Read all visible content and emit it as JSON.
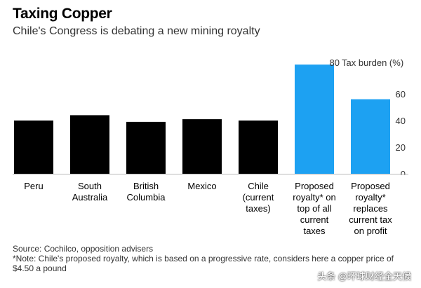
{
  "header": {
    "title": "Taxing Copper",
    "subtitle": "Chile's Congress is debating a new mining royalty"
  },
  "chart_data": {
    "type": "bar",
    "title": "Taxing Copper",
    "subtitle": "Chile's Congress is debating a new mining royalty",
    "categories": [
      "Peru",
      "South Australia",
      "British Columbia",
      "Mexico",
      "Chile (current taxes)",
      "Proposed royalty* on top of all current taxes",
      "Proposed royalty* replaces current tax on profit"
    ],
    "category_lines": [
      [
        "Peru"
      ],
      [
        "South",
        "Australia"
      ],
      [
        "British",
        "Columbia"
      ],
      [
        "Mexico"
      ],
      [
        "Chile",
        "(current",
        "taxes)"
      ],
      [
        "Proposed",
        "royalty* on",
        "top of all",
        "current",
        "taxes"
      ],
      [
        "Proposed",
        "royalty*",
        "replaces",
        "current tax",
        "on profit"
      ]
    ],
    "values": [
      40,
      44,
      39,
      41,
      40,
      82,
      56
    ],
    "colors": [
      "#000000",
      "#000000",
      "#000000",
      "#000000",
      "#000000",
      "#1da1f2",
      "#1da1f2"
    ],
    "ylabel": "Tax burden (%)",
    "ylim": [
      0,
      80
    ],
    "yticks": [
      0,
      20,
      40,
      60,
      80
    ],
    "grid": false
  },
  "footer": {
    "source": "Source: Cochilco, opposition advisers",
    "note": "*Note: Chile's proposed royalty, which is based on a progressive rate, considers here a copper price of $4.50 a pound"
  },
  "watermark": "头条 @环球财经全天候"
}
